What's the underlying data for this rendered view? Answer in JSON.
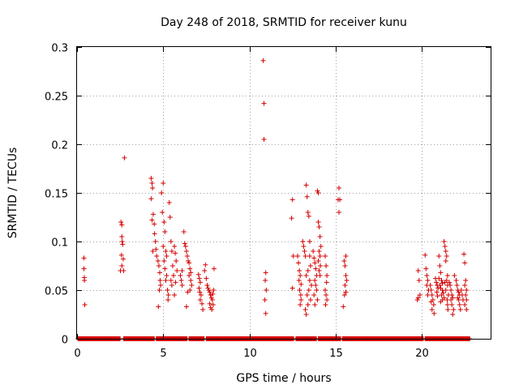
{
  "chart_data": {
    "type": "scatter",
    "title": "Day 248 of 2018, SRMTID for receiver kunu",
    "xlabel": "GPS time / hours",
    "ylabel": "SRMTID / TECUs",
    "xlim": [
      0,
      24
    ],
    "ylim": [
      0,
      0.3
    ],
    "xticks": [
      0,
      5,
      10,
      15,
      20
    ],
    "xtick_labels": [
      "0",
      "5",
      "10",
      "15",
      "20"
    ],
    "yticks": [
      0,
      0.05,
      0.1,
      0.15,
      0.2,
      0.25,
      0.3
    ],
    "ytick_labels": [
      "0",
      "0.05",
      "0.1",
      "0.15",
      "0.2",
      "0.25",
      "0.3"
    ],
    "grid": true,
    "marker": "+",
    "color": "#d40000",
    "zero_ranges": [
      [
        0.05,
        2.5
      ],
      [
        2.7,
        4.5
      ],
      [
        4.6,
        6.4
      ],
      [
        6.5,
        7.4
      ],
      [
        7.5,
        8.3
      ],
      [
        8.3,
        12.6
      ],
      [
        12.7,
        13.9
      ],
      [
        14.0,
        15.3
      ],
      [
        15.4,
        20.1
      ],
      [
        20.2,
        22.8
      ]
    ],
    "series": [
      {
        "name": "SRMTID",
        "points": [
          [
            0.4,
            0.083
          ],
          [
            0.4,
            0.072
          ],
          [
            0.42,
            0.063
          ],
          [
            0.43,
            0.06
          ],
          [
            0.45,
            0.035
          ],
          [
            2.55,
            0.12
          ],
          [
            2.6,
            0.117
          ],
          [
            2.6,
            0.105
          ],
          [
            2.62,
            0.1
          ],
          [
            2.65,
            0.097
          ],
          [
            2.58,
            0.086
          ],
          [
            2.68,
            0.082
          ],
          [
            2.6,
            0.075
          ],
          [
            2.52,
            0.07
          ],
          [
            2.7,
            0.07
          ],
          [
            2.75,
            0.186
          ],
          [
            4.3,
            0.165
          ],
          [
            4.35,
            0.16
          ],
          [
            4.38,
            0.155
          ],
          [
            4.3,
            0.144
          ],
          [
            4.42,
            0.128
          ],
          [
            4.35,
            0.122
          ],
          [
            4.48,
            0.118
          ],
          [
            4.5,
            0.108
          ],
          [
            4.55,
            0.1
          ],
          [
            4.58,
            0.092
          ],
          [
            4.62,
            0.085
          ],
          [
            4.4,
            0.09
          ],
          [
            4.7,
            0.08
          ],
          [
            4.75,
            0.075
          ],
          [
            4.8,
            0.068
          ],
          [
            4.82,
            0.06
          ],
          [
            4.85,
            0.055
          ],
          [
            4.78,
            0.05
          ],
          [
            4.72,
            0.033
          ],
          [
            4.9,
            0.15
          ],
          [
            5.0,
            0.16
          ],
          [
            4.95,
            0.13
          ],
          [
            5.05,
            0.12
          ],
          [
            5.1,
            0.11
          ],
          [
            5.0,
            0.095
          ],
          [
            5.15,
            0.09
          ],
          [
            5.2,
            0.085
          ],
          [
            5.05,
            0.08
          ],
          [
            5.1,
            0.072
          ],
          [
            5.2,
            0.065
          ],
          [
            5.15,
            0.06
          ],
          [
            5.25,
            0.05
          ],
          [
            5.3,
            0.045
          ],
          [
            5.28,
            0.04
          ],
          [
            5.35,
            0.14
          ],
          [
            5.4,
            0.125
          ],
          [
            5.45,
            0.1
          ],
          [
            5.5,
            0.09
          ],
          [
            5.55,
            0.075
          ],
          [
            5.6,
            0.065
          ],
          [
            5.45,
            0.06
          ],
          [
            5.5,
            0.055
          ],
          [
            5.65,
            0.095
          ],
          [
            5.7,
            0.088
          ],
          [
            5.75,
            0.08
          ],
          [
            5.8,
            0.07
          ],
          [
            5.72,
            0.058
          ],
          [
            5.65,
            0.045
          ],
          [
            6.0,
            0.065
          ],
          [
            6.05,
            0.06
          ],
          [
            6.1,
            0.055
          ],
          [
            6.1,
            0.07
          ],
          [
            6.2,
            0.11
          ],
          [
            6.25,
            0.098
          ],
          [
            6.3,
            0.095
          ],
          [
            6.35,
            0.09
          ],
          [
            6.4,
            0.085
          ],
          [
            6.45,
            0.08
          ],
          [
            6.5,
            0.078
          ],
          [
            6.55,
            0.072
          ],
          [
            6.6,
            0.068
          ],
          [
            6.5,
            0.065
          ],
          [
            6.6,
            0.06
          ],
          [
            6.65,
            0.055
          ],
          [
            6.55,
            0.05
          ],
          [
            6.42,
            0.048
          ],
          [
            6.35,
            0.033
          ],
          [
            7.05,
            0.066
          ],
          [
            7.1,
            0.062
          ],
          [
            7.15,
            0.058
          ],
          [
            7.08,
            0.052
          ],
          [
            7.12,
            0.048
          ],
          [
            7.2,
            0.045
          ],
          [
            7.15,
            0.04
          ],
          [
            7.25,
            0.036
          ],
          [
            7.3,
            0.03
          ],
          [
            7.4,
            0.07
          ],
          [
            7.45,
            0.076
          ],
          [
            7.5,
            0.062
          ],
          [
            7.55,
            0.055
          ],
          [
            7.6,
            0.052
          ],
          [
            7.65,
            0.05
          ],
          [
            7.7,
            0.048
          ],
          [
            7.75,
            0.045
          ],
          [
            7.8,
            0.042
          ],
          [
            7.85,
            0.04
          ],
          [
            7.7,
            0.036
          ],
          [
            7.75,
            0.032
          ],
          [
            7.82,
            0.03
          ],
          [
            7.9,
            0.035
          ],
          [
            7.95,
            0.072
          ],
          [
            7.92,
            0.05
          ],
          [
            7.88,
            0.046
          ],
          [
            10.8,
            0.286
          ],
          [
            10.85,
            0.242
          ],
          [
            10.85,
            0.205
          ],
          [
            10.95,
            0.068
          ],
          [
            10.92,
            0.06
          ],
          [
            10.98,
            0.05
          ],
          [
            10.9,
            0.04
          ],
          [
            10.95,
            0.026
          ],
          [
            12.5,
            0.143
          ],
          [
            12.45,
            0.124
          ],
          [
            12.55,
            0.085
          ],
          [
            12.5,
            0.052
          ],
          [
            12.8,
            0.085
          ],
          [
            12.85,
            0.078
          ],
          [
            12.9,
            0.07
          ],
          [
            12.95,
            0.065
          ],
          [
            12.88,
            0.06
          ],
          [
            13.0,
            0.056
          ],
          [
            12.92,
            0.05
          ],
          [
            12.98,
            0.045
          ],
          [
            13.0,
            0.04
          ],
          [
            12.95,
            0.035
          ],
          [
            13.1,
            0.1
          ],
          [
            13.15,
            0.095
          ],
          [
            13.2,
            0.09
          ],
          [
            13.25,
            0.085
          ],
          [
            13.3,
            0.158
          ],
          [
            13.35,
            0.146
          ],
          [
            13.4,
            0.13
          ],
          [
            13.45,
            0.126
          ],
          [
            13.5,
            0.1
          ],
          [
            13.5,
            0.085
          ],
          [
            13.55,
            0.075
          ],
          [
            13.4,
            0.07
          ],
          [
            13.3,
            0.065
          ],
          [
            13.5,
            0.06
          ],
          [
            13.6,
            0.055
          ],
          [
            13.45,
            0.05
          ],
          [
            13.35,
            0.045
          ],
          [
            13.55,
            0.04
          ],
          [
            13.4,
            0.035
          ],
          [
            13.25,
            0.03
          ],
          [
            13.3,
            0.025
          ],
          [
            13.7,
            0.09
          ],
          [
            13.75,
            0.083
          ],
          [
            13.8,
            0.078
          ],
          [
            13.85,
            0.072
          ],
          [
            13.9,
            0.065
          ],
          [
            13.8,
            0.06
          ],
          [
            13.85,
            0.055
          ],
          [
            13.9,
            0.05
          ],
          [
            13.75,
            0.045
          ],
          [
            13.95,
            0.04
          ],
          [
            13.8,
            0.035
          ],
          [
            13.95,
            0.152
          ],
          [
            14.0,
            0.15
          ],
          [
            14.0,
            0.12
          ],
          [
            14.05,
            0.115
          ],
          [
            14.1,
            0.105
          ],
          [
            14.15,
            0.095
          ],
          [
            14.05,
            0.09
          ],
          [
            14.1,
            0.085
          ],
          [
            14.0,
            0.08
          ],
          [
            14.12,
            0.075
          ],
          [
            14.05,
            0.07
          ],
          [
            14.1,
            0.065
          ],
          [
            14.4,
            0.085
          ],
          [
            14.45,
            0.075
          ],
          [
            14.5,
            0.065
          ],
          [
            14.48,
            0.058
          ],
          [
            14.4,
            0.05
          ],
          [
            14.45,
            0.045
          ],
          [
            14.5,
            0.04
          ],
          [
            14.42,
            0.035
          ],
          [
            15.2,
            0.155
          ],
          [
            15.15,
            0.143
          ],
          [
            15.25,
            0.143
          ],
          [
            15.2,
            0.13
          ],
          [
            15.5,
            0.08
          ],
          [
            15.55,
            0.075
          ],
          [
            15.6,
            0.085
          ],
          [
            15.6,
            0.065
          ],
          [
            15.65,
            0.06
          ],
          [
            15.55,
            0.055
          ],
          [
            15.6,
            0.048
          ],
          [
            15.52,
            0.045
          ],
          [
            15.45,
            0.033
          ],
          [
            19.8,
            0.07
          ],
          [
            19.85,
            0.06
          ],
          [
            19.9,
            0.045
          ],
          [
            19.8,
            0.042
          ],
          [
            19.75,
            0.04
          ],
          [
            20.2,
            0.086
          ],
          [
            20.25,
            0.072
          ],
          [
            20.3,
            0.065
          ],
          [
            20.35,
            0.06
          ],
          [
            20.3,
            0.055
          ],
          [
            20.4,
            0.05
          ],
          [
            20.35,
            0.045
          ],
          [
            20.5,
            0.055
          ],
          [
            20.55,
            0.05
          ],
          [
            20.6,
            0.045
          ],
          [
            20.65,
            0.04
          ],
          [
            20.7,
            0.035
          ],
          [
            20.6,
            0.03
          ],
          [
            20.72,
            0.026
          ],
          [
            20.55,
            0.038
          ],
          [
            20.8,
            0.062
          ],
          [
            20.85,
            0.058
          ],
          [
            20.9,
            0.055
          ],
          [
            20.95,
            0.052
          ],
          [
            20.88,
            0.048
          ],
          [
            20.92,
            0.044
          ],
          [
            21.0,
            0.085
          ],
          [
            21.05,
            0.075
          ],
          [
            21.1,
            0.068
          ],
          [
            21.0,
            0.062
          ],
          [
            21.15,
            0.06
          ],
          [
            21.2,
            0.057
          ],
          [
            21.05,
            0.055
          ],
          [
            21.1,
            0.052
          ],
          [
            21.2,
            0.05
          ],
          [
            21.25,
            0.047
          ],
          [
            21.15,
            0.045
          ],
          [
            21.3,
            0.042
          ],
          [
            21.2,
            0.04
          ],
          [
            21.1,
            0.038
          ],
          [
            21.3,
            0.1
          ],
          [
            21.35,
            0.095
          ],
          [
            21.4,
            0.09
          ],
          [
            21.45,
            0.085
          ],
          [
            21.4,
            0.08
          ],
          [
            21.5,
            0.065
          ],
          [
            21.45,
            0.06
          ],
          [
            21.35,
            0.058
          ],
          [
            21.5,
            0.055
          ],
          [
            21.4,
            0.05
          ],
          [
            21.55,
            0.045
          ],
          [
            21.48,
            0.04
          ],
          [
            21.5,
            0.035
          ],
          [
            21.52,
            0.03
          ],
          [
            21.6,
            0.058
          ],
          [
            21.65,
            0.055
          ],
          [
            21.7,
            0.05
          ],
          [
            21.75,
            0.045
          ],
          [
            21.8,
            0.042
          ],
          [
            21.7,
            0.04
          ],
          [
            21.75,
            0.035
          ],
          [
            21.85,
            0.03
          ],
          [
            21.8,
            0.025
          ],
          [
            21.9,
            0.065
          ],
          [
            22.0,
            0.06
          ],
          [
            22.05,
            0.055
          ],
          [
            22.1,
            0.05
          ],
          [
            22.15,
            0.048
          ],
          [
            22.2,
            0.045
          ],
          [
            22.1,
            0.042
          ],
          [
            22.15,
            0.04
          ],
          [
            22.2,
            0.035
          ],
          [
            22.25,
            0.03
          ],
          [
            22.3,
            0.05
          ],
          [
            22.35,
            0.045
          ],
          [
            22.4,
            0.04
          ],
          [
            22.45,
            0.087
          ],
          [
            22.5,
            0.078
          ],
          [
            22.55,
            0.06
          ],
          [
            22.5,
            0.055
          ],
          [
            22.6,
            0.05
          ],
          [
            22.55,
            0.045
          ],
          [
            22.6,
            0.04
          ],
          [
            22.5,
            0.035
          ],
          [
            22.6,
            0.03
          ]
        ]
      }
    ]
  }
}
